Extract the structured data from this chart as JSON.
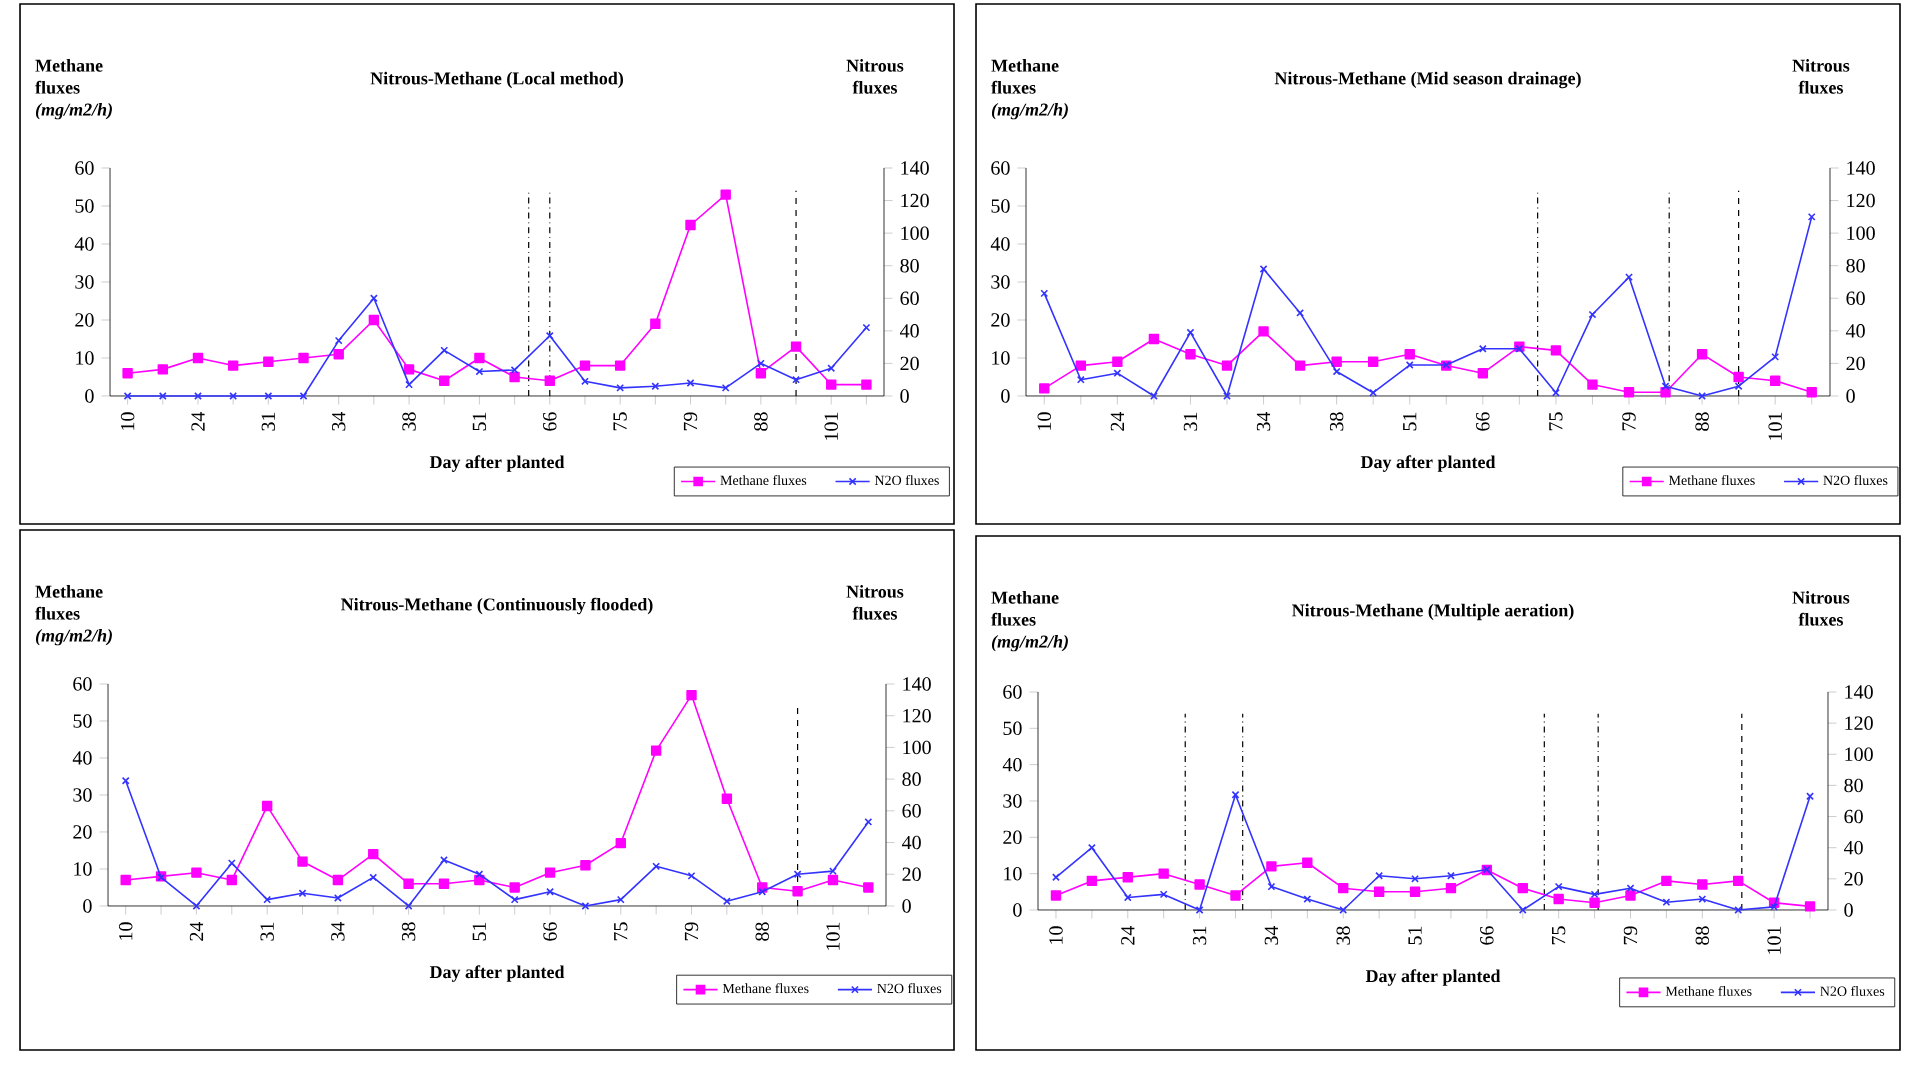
{
  "chart_data": [
    {
      "type": "line",
      "title": "Nitrous-Methane  (Local method)",
      "xlabel": "Day after planted",
      "ylabel": "Methane fluxes *(mg/m2/h)*",
      "y2label": "Nitrous fluxes",
      "categories": [
        "10",
        null,
        "24",
        null,
        "31",
        null,
        "34",
        null,
        "38",
        null,
        "51",
        null,
        "66",
        null,
        "75",
        null,
        "79",
        null,
        "88",
        null,
        "101",
        null
      ],
      "ylim": [
        0,
        60
      ],
      "yticks": [
        0,
        10,
        20,
        30,
        40,
        50,
        60
      ],
      "y2lim": [
        0,
        140
      ],
      "y2ticks": [
        0,
        20,
        40,
        60,
        80,
        100,
        120,
        140
      ],
      "legend": "bottom right",
      "series": [
        {
          "name": "Methane fluxes",
          "color": "#ff00ff",
          "marker": "square",
          "values": [
            6,
            7,
            10,
            8,
            9,
            10,
            11,
            20,
            7,
            4,
            10,
            5,
            4,
            8,
            8,
            19,
            45,
            53,
            6,
            13,
            3,
            3
          ]
        },
        {
          "name": "N2O fluxes",
          "color": "#3333ff",
          "marker": "cross",
          "axis": "y2",
          "values": [
            0,
            0,
            0,
            0,
            0,
            0,
            34,
            60,
            7,
            28,
            15,
            16,
            37,
            9,
            5,
            6,
            8,
            5,
            20,
            10,
            17,
            42
          ]
        }
      ]
    },
    {
      "type": "line",
      "title": "Nitrous-Methane   (Mid season drainage)",
      "xlabel": "Day after planted",
      "ylabel": "Methane fluxes *(mg/m2/h)*",
      "y2label": "Nitrous fluxes",
      "categories": [
        "10",
        null,
        "24",
        null,
        "31",
        null,
        "34",
        null,
        "38",
        null,
        "51",
        null,
        "66",
        null,
        "75",
        null,
        "79",
        null,
        "88",
        null,
        "101",
        null
      ],
      "ylim": [
        0,
        60
      ],
      "yticks": [
        0,
        10,
        20,
        30,
        40,
        50,
        60
      ],
      "y2lim": [
        0,
        140
      ],
      "y2ticks": [
        0,
        20,
        40,
        60,
        80,
        100,
        120,
        140
      ],
      "legend": "bottom right",
      "series": [
        {
          "name": "Methane fluxes",
          "color": "#ff00ff",
          "marker": "square",
          "values": [
            2,
            8,
            9,
            15,
            11,
            8,
            17,
            8,
            9,
            9,
            11,
            8,
            6,
            13,
            12,
            3,
            1,
            1,
            11,
            5,
            4,
            1
          ]
        },
        {
          "name": "N2O fluxes",
          "color": "#3333ff",
          "marker": "cross",
          "axis": "y2",
          "values": [
            63,
            10,
            14,
            0,
            39,
            0,
            78,
            51,
            15,
            2,
            19,
            19,
            29,
            29,
            2,
            50,
            73,
            6,
            0,
            6,
            24,
            110
          ]
        }
      ]
    },
    {
      "type": "line",
      "title": "Nitrous-Methane (Continuously flooded)",
      "xlabel": "Day after planted",
      "ylabel": "Methane fluxes *(mg/m2/h)*",
      "y2label": "Nitrous fluxes",
      "categories": [
        "10",
        null,
        "24",
        null,
        "31",
        null,
        "34",
        null,
        "38",
        null,
        "51",
        null,
        "66",
        null,
        "75",
        null,
        "79",
        null,
        "88",
        null,
        "101",
        null
      ],
      "ylim": [
        0,
        60
      ],
      "yticks": [
        0,
        10,
        20,
        30,
        40,
        50,
        60
      ],
      "y2lim": [
        0,
        140
      ],
      "y2ticks": [
        0,
        20,
        40,
        60,
        80,
        100,
        120,
        140
      ],
      "legend": "bottom right",
      "series": [
        {
          "name": "Methane fluxes",
          "color": "#ff00ff",
          "marker": "square",
          "values": [
            7,
            8,
            9,
            7,
            27,
            12,
            7,
            14,
            6,
            6,
            7,
            5,
            9,
            11,
            17,
            42,
            57,
            29,
            5,
            4,
            7,
            5
          ]
        },
        {
          "name": "N2O fluxes",
          "color": "#3333ff",
          "marker": "cross",
          "axis": "y2",
          "values": [
            79,
            18,
            0,
            27,
            4,
            8,
            5,
            18,
            0,
            29,
            20,
            4,
            9,
            0,
            4,
            25,
            19,
            3,
            9,
            20,
            22,
            53
          ]
        }
      ]
    },
    {
      "type": "line",
      "title": "Nitrous-Methane   (Multiple aeration)",
      "xlabel": "Day after planted",
      "ylabel": "Methane fluxes *(mg/m2/h)*",
      "y2label": "Nitrous fluxes",
      "categories": [
        "10",
        null,
        "24",
        null,
        "31",
        null,
        "34",
        null,
        "38",
        null,
        "51",
        null,
        "66",
        null,
        "75",
        null,
        "79",
        null,
        "88",
        null,
        "101",
        null
      ],
      "ylim": [
        0,
        60
      ],
      "yticks": [
        0,
        10,
        20,
        30,
        40,
        50,
        60
      ],
      "y2lim": [
        0,
        140
      ],
      "y2ticks": [
        0,
        20,
        40,
        60,
        80,
        100,
        120,
        140
      ],
      "legend": "bottom right",
      "series": [
        {
          "name": "Methane fluxes",
          "color": "#ff00ff",
          "marker": "square",
          "values": [
            4,
            8,
            9,
            10,
            7,
            4,
            12,
            13,
            6,
            5,
            5,
            6,
            11,
            6,
            3,
            2,
            4,
            8,
            7,
            8,
            2,
            1
          ]
        },
        {
          "name": "N2O fluxes",
          "color": "#3333ff",
          "marker": "cross",
          "axis": "y2",
          "values": [
            21,
            40,
            8,
            10,
            0,
            74,
            15,
            7,
            0,
            22,
            20,
            22,
            26,
            0,
            15,
            10,
            14,
            5,
            7,
            0,
            2,
            73
          ]
        }
      ]
    }
  ]
}
